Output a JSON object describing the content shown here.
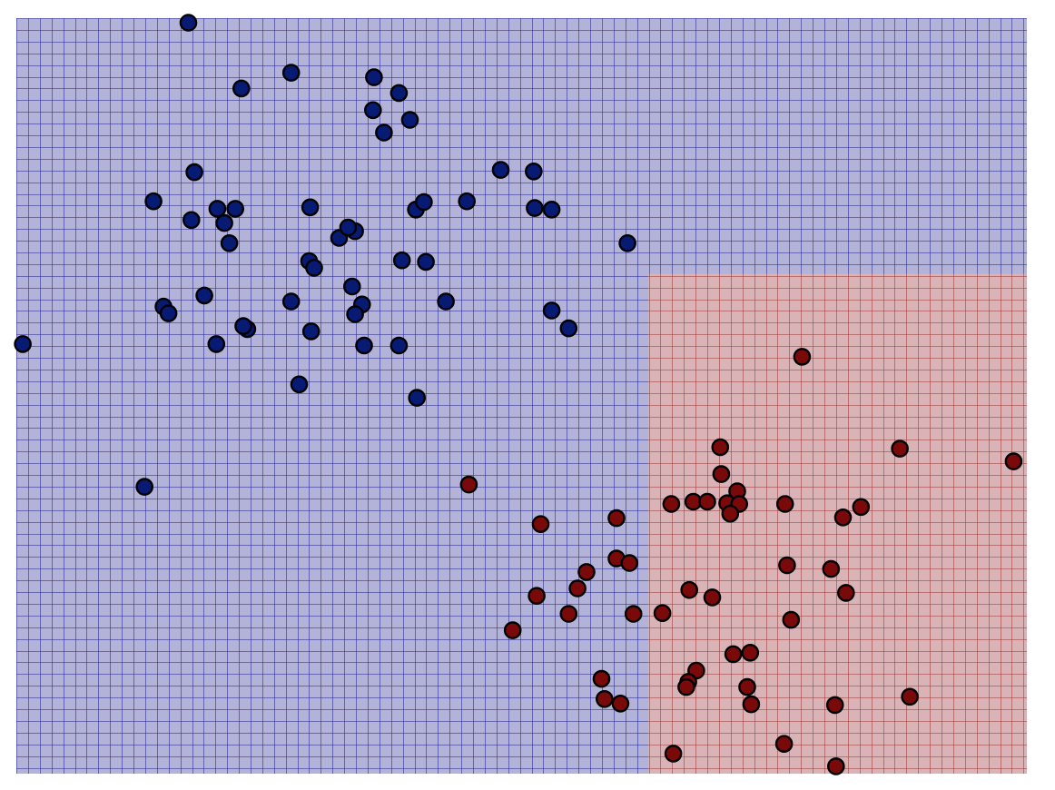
{
  "chart_data": {
    "type": "scatter",
    "title": "",
    "xlabel": "",
    "ylabel": "",
    "xlim": [
      0,
      1
    ],
    "ylim": [
      0,
      1
    ],
    "grid": true,
    "decision_regions": [
      {
        "class": "red",
        "x_min": 0.628,
        "x_max": 1.0,
        "y_min": 0.0,
        "y_max": 0.664
      },
      {
        "class": "blue",
        "rest": true
      }
    ],
    "colors": {
      "blue_region": "#b3b3d9",
      "blue_grid": "#2e2e92",
      "blue_point": "#071b75",
      "red_region": "#d9b3b5",
      "red_grid": "#a04141",
      "red_point": "#7a0a0a"
    },
    "series": [
      {
        "color": "#071b75",
        "points": [
          [
            0.167,
            1.0
          ],
          [
            0.22,
            0.912
          ],
          [
            0.27,
            0.933
          ],
          [
            0.353,
            0.927
          ],
          [
            0.378,
            0.906
          ],
          [
            0.352,
            0.883
          ],
          [
            0.389,
            0.87
          ],
          [
            0.363,
            0.853
          ],
          [
            0.173,
            0.8
          ],
          [
            0.132,
            0.761
          ],
          [
            0.196,
            0.751
          ],
          [
            0.214,
            0.751
          ],
          [
            0.17,
            0.736
          ],
          [
            0.203,
            0.732
          ],
          [
            0.208,
            0.705
          ],
          [
            0.289,
            0.753
          ],
          [
            0.318,
            0.712
          ],
          [
            0.334,
            0.721
          ],
          [
            0.327,
            0.726
          ],
          [
            0.395,
            0.75
          ],
          [
            0.403,
            0.76
          ],
          [
            0.446,
            0.761
          ],
          [
            0.48,
            0.803
          ],
          [
            0.513,
            0.801
          ],
          [
            0.514,
            0.752
          ],
          [
            0.531,
            0.75
          ],
          [
            0.607,
            0.705
          ],
          [
            0.288,
            0.681
          ],
          [
            0.293,
            0.672
          ],
          [
            0.381,
            0.682
          ],
          [
            0.405,
            0.68
          ],
          [
            0.331,
            0.647
          ],
          [
            0.183,
            0.635
          ],
          [
            0.142,
            0.62
          ],
          [
            0.147,
            0.611
          ],
          [
            0.27,
            0.627
          ],
          [
            0.341,
            0.623
          ],
          [
            0.334,
            0.61
          ],
          [
            0.425,
            0.627
          ],
          [
            0.226,
            0.59
          ],
          [
            0.29,
            0.587
          ],
          [
            0.195,
            0.57
          ],
          [
            0.222,
            0.594
          ],
          [
            0.343,
            0.568
          ],
          [
            0.378,
            0.568
          ],
          [
            0.531,
            0.615
          ],
          [
            0.548,
            0.591
          ],
          [
            0.278,
            0.516
          ],
          [
            0.396,
            0.498
          ],
          [
            0.001,
            0.57
          ],
          [
            0.123,
            0.379
          ]
        ]
      },
      {
        "color": "#7a0a0a",
        "points": [
          [
            0.782,
            0.553
          ],
          [
            0.88,
            0.43
          ],
          [
            0.994,
            0.413
          ],
          [
            0.7,
            0.432
          ],
          [
            0.701,
            0.396
          ],
          [
            0.448,
            0.382
          ],
          [
            0.717,
            0.373
          ],
          [
            0.596,
            0.337
          ],
          [
            0.823,
            0.338
          ],
          [
            0.841,
            0.352
          ],
          [
            0.651,
            0.356
          ],
          [
            0.673,
            0.359
          ],
          [
            0.687,
            0.359
          ],
          [
            0.707,
            0.357
          ],
          [
            0.719,
            0.356
          ],
          [
            0.765,
            0.356
          ],
          [
            0.71,
            0.343
          ],
          [
            0.52,
            0.329
          ],
          [
            0.596,
            0.283
          ],
          [
            0.609,
            0.277
          ],
          [
            0.566,
            0.265
          ],
          [
            0.557,
            0.243
          ],
          [
            0.669,
            0.241
          ],
          [
            0.692,
            0.231
          ],
          [
            0.767,
            0.274
          ],
          [
            0.811,
            0.269
          ],
          [
            0.826,
            0.237
          ],
          [
            0.516,
            0.233
          ],
          [
            0.548,
            0.209
          ],
          [
            0.613,
            0.209
          ],
          [
            0.642,
            0.21
          ],
          [
            0.771,
            0.201
          ],
          [
            0.492,
            0.187
          ],
          [
            0.713,
            0.155
          ],
          [
            0.73,
            0.157
          ],
          [
            0.676,
            0.133
          ],
          [
            0.668,
            0.118
          ],
          [
            0.581,
            0.122
          ],
          [
            0.584,
            0.095
          ],
          [
            0.6,
            0.089
          ],
          [
            0.666,
            0.111
          ],
          [
            0.727,
            0.111
          ],
          [
            0.731,
            0.088
          ],
          [
            0.89,
            0.098
          ],
          [
            0.815,
            0.087
          ],
          [
            0.653,
            0.022
          ],
          [
            0.764,
            0.035
          ],
          [
            0.816,
            0.005
          ]
        ]
      }
    ]
  }
}
